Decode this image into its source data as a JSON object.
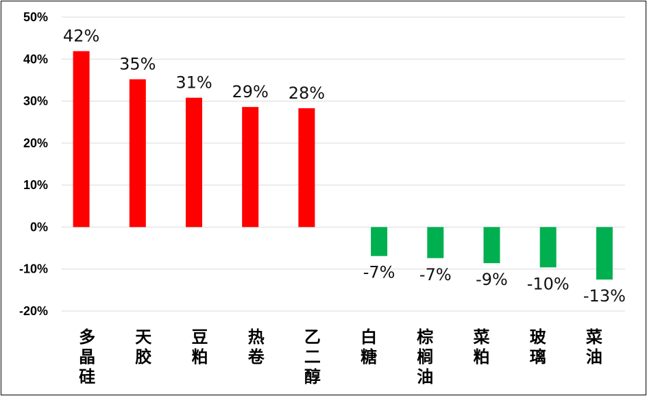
{
  "chart_data": {
    "type": "bar",
    "categories": [
      "多晶硅",
      "天胶",
      "豆粕",
      "热卷",
      "乙二醇",
      "白糖",
      "棕榈油",
      "菜粕",
      "玻璃",
      "菜油"
    ],
    "values": [
      41.9,
      35.2,
      30.8,
      28.6,
      28.3,
      -6.9,
      -7.4,
      -8.6,
      -9.6,
      -12.5
    ],
    "data_labels": [
      "42%",
      "35%",
      "31%",
      "29%",
      "28%",
      "-7%",
      "-7%",
      "-9%",
      "-10%",
      "-13%"
    ],
    "unit": "%",
    "ylim": [
      -20,
      50
    ],
    "yticks": [
      "-20%",
      "-10%",
      "0%",
      "10%",
      "20%",
      "30%",
      "40%",
      "50%"
    ],
    "grid": true,
    "legend": "none",
    "colors": {
      "positive": "#ff0000",
      "negative": "#00b050",
      "grid": "#d9d9d9"
    }
  }
}
